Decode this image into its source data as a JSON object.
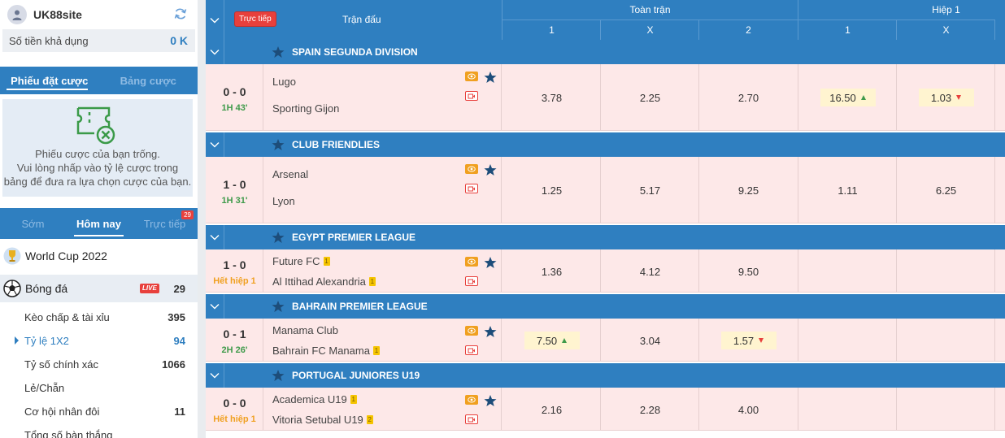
{
  "account": {
    "username": "UK88site",
    "balance_label": "Số tiền khả dụng",
    "balance_value": "0 K"
  },
  "bet_slip": {
    "tabs": [
      "Phiếu đặt cược",
      "Bảng cược"
    ],
    "empty_line1": "Phiếu cược của bạn trống.",
    "empty_line2": "Vui lòng nhấp vào tỷ lệ cược trong",
    "empty_line3": "bảng để đưa ra lựa chọn cược của bạn."
  },
  "time_tabs": [
    {
      "label": "Sớm"
    },
    {
      "label": "Hôm nay"
    },
    {
      "label": "Trực tiếp",
      "count": "29"
    }
  ],
  "sports": [
    {
      "name": "World Cup 2022",
      "icon": "trophy-icon"
    },
    {
      "name": "Bóng đá",
      "icon": "soccer-ball-icon",
      "live": "LIVE",
      "count": "29"
    }
  ],
  "markets": [
    {
      "name": "Kèo chấp & tài xỉu",
      "count": "395"
    },
    {
      "name": "Tỷ lệ 1X2",
      "count": "94",
      "active": true
    },
    {
      "name": "Tỷ số chính xác",
      "count": "1066"
    },
    {
      "name": "Lẻ/Chẵn",
      "count": ""
    },
    {
      "name": "Cơ hội nhân đôi",
      "count": "11"
    },
    {
      "name": "Tổng số bàn thắng",
      "count": ""
    }
  ],
  "header": {
    "live_button": "Trực tiếp",
    "match_col": "Trận đấu",
    "full_time": "Toàn trận",
    "first_half": "Hiệp 1",
    "ft_cols": [
      "1",
      "X",
      "2"
    ],
    "h1_cols": [
      "1",
      "X"
    ]
  },
  "leagues": [
    {
      "name": "SPAIN SEGUNDA DIVISION",
      "match": {
        "score": "0 - 0",
        "time": "1H 43'",
        "time_color": "green",
        "home": "Lugo",
        "away": "Sporting Gijon",
        "home_card": "",
        "away_card": "",
        "ft": [
          "3.78",
          "2.25",
          "2.70"
        ],
        "h1": [
          "16.50",
          "1.03"
        ],
        "h1_trend": [
          "up",
          "down"
        ]
      }
    },
    {
      "name": "CLUB FRIENDLIES",
      "match": {
        "score": "1 - 0",
        "time": "1H 31'",
        "time_color": "green",
        "home": "Arsenal",
        "away": "Lyon",
        "home_card": "",
        "away_card": "",
        "ft": [
          "1.25",
          "5.17",
          "9.25"
        ],
        "h1": [
          "1.11",
          "6.25"
        ]
      }
    },
    {
      "name": "EGYPT PREMIER LEAGUE",
      "match": {
        "score": "1 - 0",
        "time": "Hết hiệp 1",
        "time_color": "orange",
        "home": "Future FC",
        "away": "Al Ittihad Alexandria",
        "home_card": "1",
        "away_card": "1",
        "ft": [
          "1.36",
          "4.12",
          "9.50"
        ],
        "h1": [
          "",
          ""
        ]
      }
    },
    {
      "name": "BAHRAIN PREMIER LEAGUE",
      "match": {
        "score": "0 - 1",
        "time": "2H 26'",
        "time_color": "green",
        "home": "Manama Club",
        "away": "Bahrain FC Manama",
        "home_card": "",
        "away_card": "1",
        "ft": [
          "7.50",
          "3.04",
          "1.57"
        ],
        "ft_trend": [
          "up",
          "",
          "down"
        ],
        "h1": [
          "",
          ""
        ]
      }
    },
    {
      "name": "PORTUGAL JUNIORES U19",
      "match": {
        "score": "0 - 0",
        "time": "Hết hiệp 1",
        "time_color": "orange",
        "home": "Academica U19",
        "away": "Vitoria Setubal U19",
        "home_card": "1",
        "away_card": "2",
        "ft": [
          "2.16",
          "2.28",
          "4.00"
        ],
        "h1": [
          "",
          ""
        ]
      }
    }
  ],
  "colors": {
    "brand_blue": "#2f7fc0",
    "live_red": "#e8403c",
    "row_pink": "#fde8e8",
    "up_green": "#3e9a4a"
  }
}
